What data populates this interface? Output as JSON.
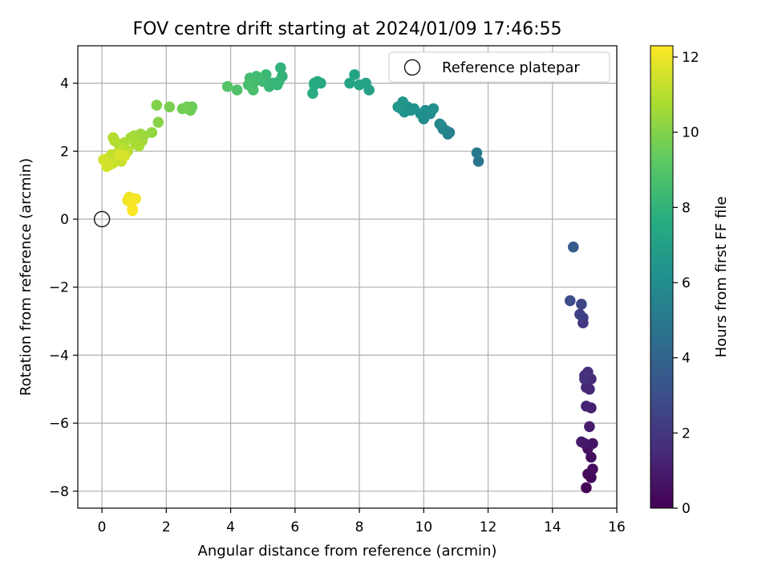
{
  "chart_data": {
    "type": "scatter",
    "title": "FOV centre drift starting at 2024/01/09 17:46:55",
    "xlabel": "Angular distance from reference (arcmin)",
    "ylabel": "Rotation from reference (arcmin)",
    "xlim": [
      -0.75,
      16
    ],
    "ylim": [
      -8.5,
      5.1
    ],
    "xticks": [
      0,
      2,
      4,
      6,
      8,
      10,
      12,
      14,
      16
    ],
    "xtick_labels": [
      "0",
      "2",
      "4",
      "6",
      "8",
      "10",
      "12",
      "14",
      "16"
    ],
    "yticks": [
      -8,
      -6,
      -4,
      -2,
      0,
      2,
      4
    ],
    "ytick_labels": [
      "−8",
      "−6",
      "−4",
      "−2",
      "0",
      "2",
      "4"
    ],
    "grid": true,
    "legend": {
      "position": "top-right",
      "label": "Reference platepar"
    },
    "reference_point": {
      "x": 0,
      "y": 0
    },
    "colorbar": {
      "label": "Hours from first FF file",
      "colormap": "viridis",
      "range": [
        0,
        12.3
      ],
      "ticks": [
        0,
        2,
        4,
        6,
        8,
        10,
        12
      ],
      "tick_labels": [
        "0",
        "2",
        "4",
        "6",
        "8",
        "10",
        "12"
      ]
    },
    "points": [
      [
        15.05,
        -7.9,
        0.1
      ],
      [
        15.2,
        -7.6,
        0.2
      ],
      [
        15.1,
        -7.5,
        0.3
      ],
      [
        15.25,
        -7.35,
        0.4
      ],
      [
        15.2,
        -7.0,
        0.5
      ],
      [
        15.1,
        -6.75,
        0.6
      ],
      [
        15.25,
        -6.6,
        0.7
      ],
      [
        15.0,
        -6.6,
        0.8
      ],
      [
        14.9,
        -6.55,
        0.9
      ],
      [
        15.15,
        -6.1,
        1.0
      ],
      [
        15.2,
        -5.55,
        1.1
      ],
      [
        15.05,
        -5.5,
        1.2
      ],
      [
        15.15,
        -5.0,
        1.3
      ],
      [
        15.05,
        -4.95,
        1.4
      ],
      [
        15.2,
        -4.7,
        1.5
      ],
      [
        15.0,
        -4.6,
        1.6
      ],
      [
        15.1,
        -4.5,
        1.7
      ],
      [
        15.0,
        -4.7,
        1.8
      ],
      [
        14.95,
        -3.05,
        2.0
      ],
      [
        14.95,
        -2.9,
        2.2
      ],
      [
        14.85,
        -2.8,
        2.4
      ],
      [
        14.9,
        -2.5,
        2.6
      ],
      [
        14.55,
        -2.4,
        3.0
      ],
      [
        14.65,
        -0.82,
        3.6
      ],
      [
        11.7,
        1.7,
        4.8
      ],
      [
        11.65,
        1.95,
        5.0
      ],
      [
        10.8,
        2.55,
        5.3
      ],
      [
        10.75,
        2.5,
        5.4
      ],
      [
        10.7,
        2.6,
        5.5
      ],
      [
        10.6,
        2.65,
        5.6
      ],
      [
        10.55,
        2.75,
        5.7
      ],
      [
        10.5,
        2.8,
        5.75
      ],
      [
        10.0,
        2.95,
        5.9
      ],
      [
        10.2,
        3.1,
        6.0
      ],
      [
        10.05,
        3.2,
        6.05
      ],
      [
        10.3,
        3.25,
        6.1
      ],
      [
        9.9,
        3.1,
        6.15
      ],
      [
        9.7,
        3.25,
        6.2
      ],
      [
        9.6,
        3.2,
        6.25
      ],
      [
        9.5,
        3.3,
        6.3
      ],
      [
        9.4,
        3.15,
        6.35
      ],
      [
        9.35,
        3.45,
        6.4
      ],
      [
        9.3,
        3.25,
        6.45
      ],
      [
        9.2,
        3.3,
        6.5
      ],
      [
        8.3,
        3.8,
        7.0
      ],
      [
        8.2,
        4.0,
        7.1
      ],
      [
        8.0,
        3.95,
        7.15
      ],
      [
        7.85,
        4.25,
        7.2
      ],
      [
        7.7,
        4.0,
        7.25
      ],
      [
        6.8,
        4.0,
        7.45
      ],
      [
        6.7,
        4.05,
        7.5
      ],
      [
        6.6,
        4.0,
        7.55
      ],
      [
        6.55,
        3.7,
        7.6
      ],
      [
        6.6,
        3.95,
        7.65
      ],
      [
        5.55,
        4.45,
        8.0
      ],
      [
        5.6,
        4.2,
        8.05
      ],
      [
        5.5,
        4.05,
        8.1
      ],
      [
        5.45,
        3.95,
        8.15
      ],
      [
        5.3,
        4.0,
        8.2
      ],
      [
        5.2,
        3.9,
        8.25
      ],
      [
        5.1,
        4.25,
        8.3
      ],
      [
        5.0,
        4.05,
        8.35
      ],
      [
        4.9,
        4.1,
        8.4
      ],
      [
        4.8,
        4.2,
        8.45
      ],
      [
        4.7,
        4.0,
        8.5
      ],
      [
        4.6,
        4.15,
        8.55
      ],
      [
        4.65,
        3.9,
        8.6
      ],
      [
        4.7,
        3.8,
        8.65
      ],
      [
        4.55,
        3.95,
        8.7
      ],
      [
        4.2,
        3.8,
        8.9
      ],
      [
        3.9,
        3.9,
        9.0
      ],
      [
        2.8,
        3.3,
        9.5
      ],
      [
        2.75,
        3.2,
        9.55
      ],
      [
        2.65,
        3.3,
        9.6
      ],
      [
        2.5,
        3.25,
        9.65
      ],
      [
        2.1,
        3.3,
        9.8
      ],
      [
        1.7,
        3.35,
        9.95
      ],
      [
        1.75,
        2.85,
        10.05
      ],
      [
        1.55,
        2.55,
        10.3
      ],
      [
        1.3,
        2.45,
        10.4
      ],
      [
        1.2,
        2.5,
        10.45
      ],
      [
        1.1,
        2.4,
        10.5
      ],
      [
        1.25,
        2.3,
        10.55
      ],
      [
        1.0,
        2.45,
        10.6
      ],
      [
        0.9,
        2.4,
        10.65
      ],
      [
        1.05,
        2.2,
        10.7
      ],
      [
        1.15,
        2.15,
        10.75
      ],
      [
        0.7,
        2.25,
        10.8
      ],
      [
        0.55,
        2.15,
        10.85
      ],
      [
        0.4,
        2.3,
        10.9
      ],
      [
        0.35,
        2.4,
        10.95
      ],
      [
        0.8,
        2.0,
        11.0
      ],
      [
        0.65,
        2.05,
        11.05
      ],
      [
        0.5,
        1.95,
        11.1
      ],
      [
        0.3,
        1.9,
        11.15
      ],
      [
        0.2,
        1.8,
        11.2
      ],
      [
        0.45,
        1.75,
        11.25
      ],
      [
        0.6,
        1.7,
        11.3
      ],
      [
        0.35,
        1.65,
        11.35
      ],
      [
        0.25,
        1.6,
        11.4
      ],
      [
        0.1,
        1.7,
        11.45
      ],
      [
        0.05,
        1.75,
        11.5
      ],
      [
        0.15,
        1.55,
        11.55
      ],
      [
        0.55,
        1.9,
        11.6
      ],
      [
        0.7,
        1.85,
        11.62
      ],
      [
        0.85,
        0.65,
        12.0
      ],
      [
        0.8,
        0.55,
        12.05
      ],
      [
        1.05,
        0.6,
        12.1
      ],
      [
        0.9,
        0.5,
        12.15
      ],
      [
        0.95,
        0.3,
        12.2
      ],
      [
        0.95,
        0.25,
        12.25
      ]
    ]
  }
}
